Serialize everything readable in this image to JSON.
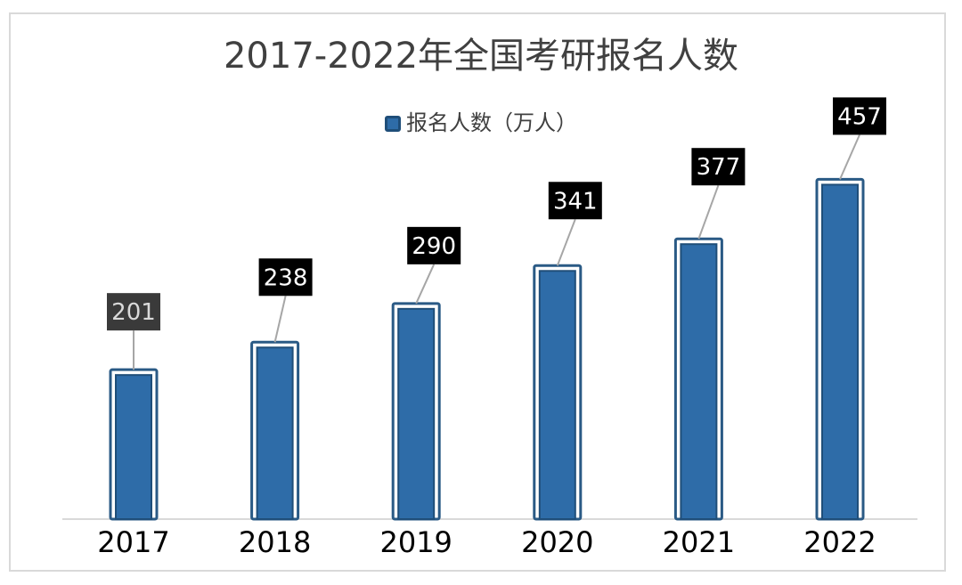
{
  "chart_data": {
    "type": "bar",
    "title": "2017-2022年全国考研报名人数",
    "categories": [
      "2017",
      "2018",
      "2019",
      "2020",
      "2021",
      "2022"
    ],
    "series": [
      {
        "name": "报名人数（万人）",
        "values": [
          201,
          238,
          290,
          341,
          377,
          457
        ]
      }
    ],
    "data_labels": [
      "201",
      "238",
      "290",
      "341",
      "377",
      "457"
    ],
    "xlabel": "",
    "ylabel": "",
    "ylim": [
      0,
      480
    ],
    "grid": false,
    "legend_position": "top",
    "colors": {
      "bar_fill": "#2e6ca8",
      "bar_inner_border": "#1f4e79",
      "bar_outer_border": "#2a5a85",
      "label_bg": "#000000",
      "label_text": "#ffffff",
      "first_label_bg": "#3a3a3a",
      "first_label_text": "#d9d9d9",
      "leader_line": "#a6a6a6",
      "axis_line": "#d9d9d9",
      "tick_text": "#000000"
    }
  }
}
